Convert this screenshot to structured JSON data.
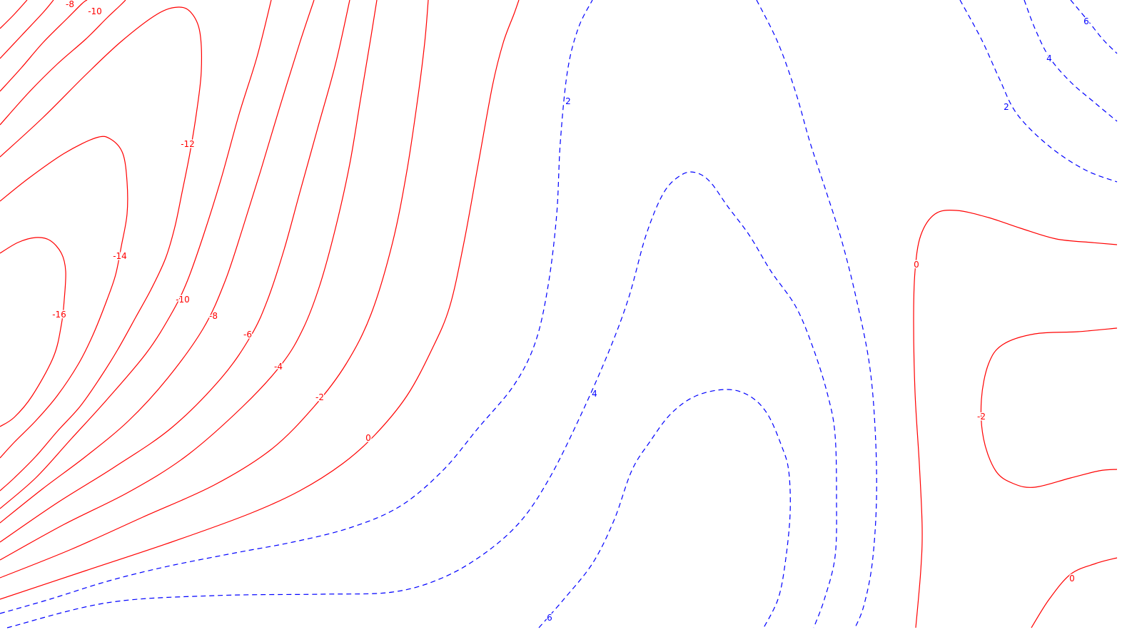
{
  "chart_data": {
    "type": "contour",
    "title": "",
    "xlabel": "",
    "ylabel": "",
    "grid": false,
    "legend": false,
    "style": {
      "negative_color": "#ff0000",
      "positive_color": "#0000ff",
      "negative_line": "solid",
      "positive_line": "dashed"
    },
    "contour_labels": [
      {
        "text": "-8"
      },
      {
        "text": "-10"
      },
      {
        "text": "-12"
      },
      {
        "text": "-14"
      },
      {
        "text": "-16"
      },
      {
        "text": "-10"
      },
      {
        "text": "-8"
      },
      {
        "text": "-6"
      },
      {
        "text": "-4"
      },
      {
        "text": "-2"
      },
      {
        "text": "0"
      },
      {
        "text": "2"
      },
      {
        "text": "4"
      },
      {
        "text": "6"
      },
      {
        "text": "6"
      },
      {
        "text": "4"
      },
      {
        "text": "2"
      },
      {
        "text": "0"
      },
      {
        "text": "-2"
      },
      {
        "text": "0"
      }
    ]
  }
}
